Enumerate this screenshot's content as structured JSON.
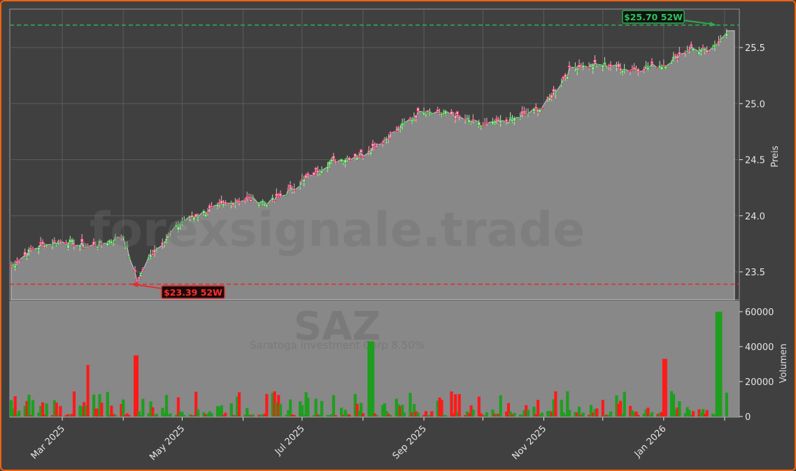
{
  "chart_data": {
    "type": "candlestick+volume",
    "ticker": "SAZ",
    "subtitle": "Saratoga Investment Corp 8.50%",
    "watermark": "forexsignale.trade",
    "price_axis": {
      "label": "Preis",
      "ticks": [
        23.5,
        24.0,
        24.5,
        25.0,
        25.5
      ],
      "ylim": [
        23.22,
        25.84
      ]
    },
    "volume_axis": {
      "label": "Volumen",
      "ticks": [
        0,
        20000,
        40000,
        60000
      ],
      "ylim": [
        0,
        66000
      ]
    },
    "x_axis": {
      "ticks": [
        "Mar 2025",
        "May 2025",
        "Jul 2025",
        "Sep 2025",
        "Nov 2025",
        "Jan 2026"
      ]
    },
    "annotations": [
      {
        "label": "$25.70 52W",
        "type": "52-week high",
        "value": 25.7,
        "color": "#2eaa4f"
      },
      {
        "label": "$23.39 52W",
        "type": "52-week low",
        "value": 23.39,
        "color": "#e03030"
      }
    ],
    "price_close_approx": {
      "dates": [
        "2025-02-03",
        "2025-02-15",
        "2025-03-01",
        "2025-03-15",
        "2025-04-01",
        "2025-04-08",
        "2025-04-15",
        "2025-05-01",
        "2025-05-15",
        "2025-06-01",
        "2025-06-15",
        "2025-07-01",
        "2025-07-15",
        "2025-08-01",
        "2025-08-15",
        "2025-09-01",
        "2025-09-15",
        "2025-10-01",
        "2025-10-15",
        "2025-11-01",
        "2025-11-15",
        "2025-12-01",
        "2025-12-15",
        "2026-01-01",
        "2026-01-15",
        "2026-01-25",
        "2026-02-01"
      ],
      "values": [
        23.55,
        23.72,
        23.78,
        23.72,
        23.82,
        23.42,
        23.65,
        23.95,
        24.05,
        24.15,
        24.12,
        24.3,
        24.48,
        24.55,
        24.72,
        24.95,
        24.9,
        24.8,
        24.85,
        24.97,
        25.32,
        25.35,
        25.3,
        25.35,
        25.5,
        25.45,
        25.65
      ]
    },
    "volume_peaks": [
      {
        "date": "2025-03-15",
        "value": 29500,
        "direction": "down"
      },
      {
        "date": "2025-04-07",
        "value": 35000,
        "direction": "down"
      },
      {
        "date": "2025-08-05",
        "value": 43000,
        "direction": "up"
      },
      {
        "date": "2026-01-02",
        "value": 33000,
        "direction": "down"
      },
      {
        "date": "2026-01-29",
        "value": 60000,
        "direction": "up"
      }
    ]
  },
  "colors": {
    "frame_border": "#f0620f",
    "background": "#404040",
    "area_fill": "#888888",
    "up": "#1e9e1e",
    "down": "#ff1a1a",
    "high_line": "#2eaa4f",
    "low_line": "#e03030"
  }
}
